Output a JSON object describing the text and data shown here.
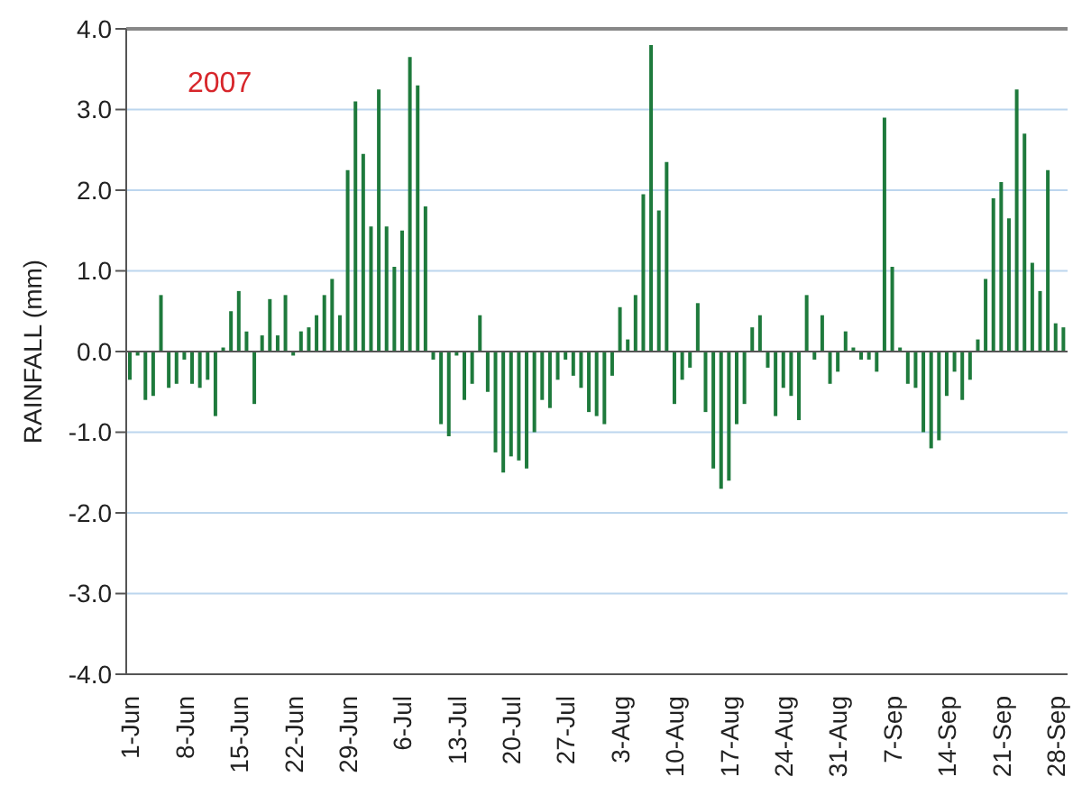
{
  "chart_data": {
    "type": "bar",
    "ylabel": "RAINFALL (mm)",
    "annotations": [
      "2007"
    ],
    "categories": [
      "1-Jun",
      null,
      null,
      null,
      null,
      null,
      null,
      "8-Jun",
      null,
      null,
      null,
      null,
      null,
      null,
      "15-Jun",
      null,
      null,
      null,
      null,
      null,
      null,
      "22-Jun",
      null,
      null,
      null,
      null,
      null,
      null,
      "29-Jun",
      null,
      null,
      null,
      null,
      null,
      null,
      "6-Jul",
      null,
      null,
      null,
      null,
      null,
      null,
      "13-Jul",
      null,
      null,
      null,
      null,
      null,
      null,
      "20-Jul",
      null,
      null,
      null,
      null,
      null,
      null,
      "27-Jul",
      null,
      null,
      null,
      null,
      null,
      null,
      "3-Aug",
      null,
      null,
      null,
      null,
      null,
      null,
      "10-Aug",
      null,
      null,
      null,
      null,
      null,
      null,
      "17-Aug",
      null,
      null,
      null,
      null,
      null,
      null,
      "24-Aug",
      null,
      null,
      null,
      null,
      null,
      null,
      "31-Aug",
      null,
      null,
      null,
      null,
      null,
      null,
      "7-Sep",
      null,
      null,
      null,
      null,
      null,
      null,
      "14-Sep",
      null,
      null,
      null,
      null,
      null,
      null,
      "21-Sep",
      null,
      null,
      null,
      null,
      null,
      null,
      "28-Sep",
      null
    ],
    "values": [
      -0.35,
      -0.05,
      -0.6,
      -0.55,
      0.7,
      -0.45,
      -0.4,
      -0.1,
      -0.4,
      -0.45,
      -0.35,
      -0.8,
      0.05,
      0.5,
      0.75,
      0.25,
      -0.65,
      0.2,
      0.65,
      0.2,
      0.7,
      -0.05,
      0.25,
      0.3,
      0.45,
      0.7,
      0.9,
      0.45,
      2.25,
      3.1,
      2.45,
      1.55,
      3.25,
      1.55,
      1.05,
      1.5,
      3.65,
      3.3,
      1.8,
      -0.1,
      -0.9,
      -1.05,
      -0.05,
      -0.6,
      -0.4,
      0.45,
      -0.5,
      -1.25,
      -1.5,
      -1.3,
      -1.35,
      -1.45,
      -1.0,
      -0.6,
      -0.7,
      -0.35,
      -0.1,
      -0.3,
      -0.45,
      -0.75,
      -0.8,
      -0.9,
      -0.3,
      0.55,
      0.15,
      0.7,
      1.95,
      3.8,
      1.75,
      2.35,
      -0.65,
      -0.35,
      -0.2,
      0.6,
      -0.75,
      -1.45,
      -1.7,
      -1.6,
      -0.9,
      -0.65,
      0.3,
      0.45,
      -0.2,
      -0.8,
      -0.45,
      -0.55,
      -0.85,
      0.7,
      -0.1,
      0.45,
      -0.4,
      -0.25,
      0.25,
      0.05,
      -0.1,
      -0.1,
      -0.25,
      2.9,
      1.05,
      0.05,
      -0.4,
      -0.45,
      -1.0,
      -1.2,
      -1.1,
      -0.55,
      -0.25,
      -0.6,
      -0.35,
      0.15,
      0.9,
      1.9,
      2.1,
      1.65,
      3.25,
      2.7,
      1.1,
      0.75,
      2.25,
      0.35,
      0.3
    ],
    "color": "#1e7a3c",
    "ylim": [
      -4,
      4
    ],
    "yticks": [
      {
        "value": -4,
        "label": "-4.0"
      },
      {
        "value": -3,
        "label": "-3.0"
      },
      {
        "value": -2,
        "label": "-2.0"
      },
      {
        "value": -1,
        "label": "-1.0"
      },
      {
        "value": 0,
        "label": "0.0"
      },
      {
        "value": 1,
        "label": "1.0"
      },
      {
        "value": 2,
        "label": "2.0"
      },
      {
        "value": 3,
        "label": "3.0"
      },
      {
        "value": 4,
        "label": "4.0"
      }
    ],
    "grid": "y"
  }
}
